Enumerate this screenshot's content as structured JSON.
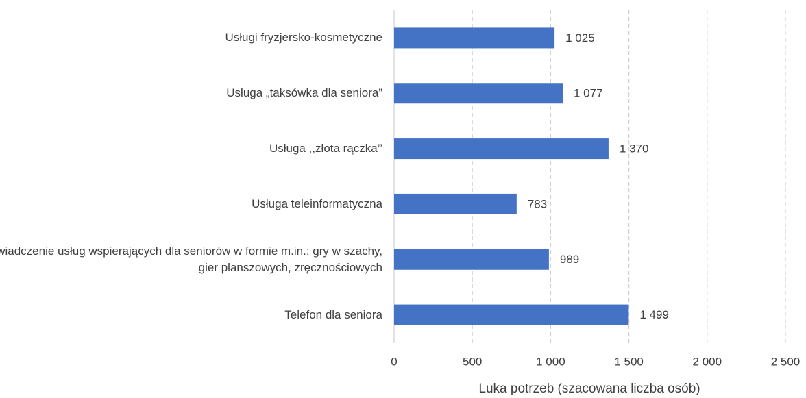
{
  "chart_data": {
    "type": "hbar",
    "categories": [
      "Usługi fryzjersko-kosmetyczne",
      "Usługa „taksówka dla seniora”",
      "Usługa ,,złota rączka’’",
      "Usługa teleinformatyczna",
      "Świadczenie usług wspierających dla seniorów w formie m.in.: gry w szachy, gier planszowych, zręcznościowych",
      "Telefon dla seniora"
    ],
    "values": [
      1025,
      1077,
      1370,
      783,
      989,
      1499
    ],
    "value_labels": [
      "1 025",
      "1 077",
      "1 370",
      "783",
      "989",
      "1 499"
    ],
    "color": "#4472c4",
    "xlabel": "Luka potrzeb (szacowana liczba osób)",
    "xlim": [
      0,
      2500
    ],
    "xticks": [
      0,
      500,
      {
        "value": 1000,
        "label": "1 000"
      },
      {
        "value": 1500,
        "label": "1 500"
      },
      {
        "value": 2000,
        "label": "2 000"
      },
      {
        "value": 2500,
        "label": "2 500"
      }
    ],
    "grid": true
  }
}
